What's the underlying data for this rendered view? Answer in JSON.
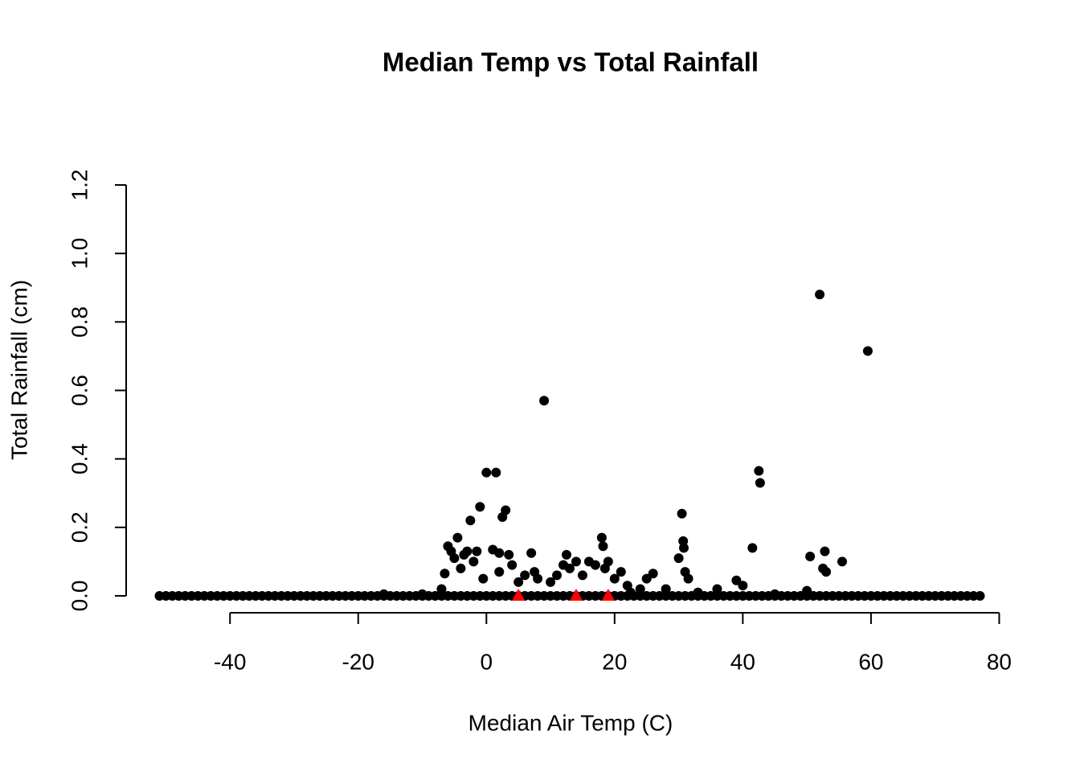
{
  "chart_data": {
    "type": "scatter",
    "title": "Median Temp vs Total Rainfall",
    "x_label": "Median Air Temp (C)",
    "y_label": "Total Rainfall (cm)",
    "xlim": [
      -56.2,
      82.2
    ],
    "ylim": [
      -0.048,
      1.248
    ],
    "xticks": [
      -40,
      -20,
      0,
      20,
      40,
      60,
      80
    ],
    "yticks": [
      {
        "value": 0,
        "label": "0.0"
      },
      0.2,
      0.4,
      0.6,
      0.8,
      {
        "value": 1,
        "label": "1.0"
      },
      1.2
    ],
    "grid": false,
    "series": [
      {
        "color": "#000000",
        "marker": "circle",
        "x": [
          -51,
          -50,
          -49,
          -48,
          -47,
          -46,
          -45,
          -44,
          -43,
          -42,
          -41,
          -40,
          -39,
          -38,
          -37,
          -36,
          -35,
          -34,
          -33,
          -32,
          -31,
          -30,
          -29,
          -28,
          -27,
          -26,
          -25,
          -24,
          -23,
          -22,
          -21,
          -20,
          -19,
          -18,
          -17,
          -16,
          -15,
          -14,
          -13,
          -12,
          -11,
          -10,
          -9,
          -8,
          -7,
          -6,
          -5,
          -4,
          -3,
          -2,
          -1,
          0,
          1,
          2,
          3,
          4,
          5,
          6,
          7,
          8,
          9,
          10,
          11,
          12,
          13,
          14,
          15,
          16,
          17,
          18,
          19,
          20,
          21,
          22,
          23,
          24,
          25,
          26,
          27,
          28,
          29,
          30,
          31,
          32,
          33,
          34,
          35,
          36,
          37,
          38,
          39,
          40,
          41,
          42,
          43,
          44,
          45,
          46,
          47,
          48,
          49,
          50,
          51,
          52,
          53,
          54,
          55,
          56,
          57,
          58,
          59,
          60,
          61,
          62,
          63,
          64,
          65,
          66,
          67,
          68,
          69,
          70,
          71,
          72,
          73,
          74,
          75,
          76,
          77,
          -7,
          -6.5,
          -6,
          -5.5,
          -5,
          -4.5,
          -4,
          -3.5,
          -3,
          -2.5,
          -2,
          -1.5,
          -1,
          -0.5,
          0,
          1.5,
          1,
          2,
          2.5,
          3,
          3.5,
          4,
          2,
          5,
          6,
          7,
          7.5,
          8,
          9,
          10,
          11,
          12,
          12.5,
          13,
          14,
          15,
          16,
          17,
          18,
          18.2,
          18.5,
          19,
          20,
          21,
          22,
          24,
          25,
          26,
          28,
          30,
          30.5,
          30.7,
          30.8,
          31,
          31.5,
          33,
          36,
          39,
          40,
          41.5,
          42.5,
          42.7,
          50.5,
          52,
          52.5,
          52.8,
          53,
          55.5,
          59.5,
          50,
          45,
          -10,
          -16,
          22.5
        ],
        "values": [
          0,
          0,
          0,
          0,
          0,
          0,
          0,
          0,
          0,
          0,
          0,
          0,
          0,
          0,
          0,
          0,
          0,
          0,
          0,
          0,
          0,
          0,
          0,
          0,
          0,
          0,
          0,
          0,
          0,
          0,
          0,
          0,
          0,
          0,
          0,
          0,
          0,
          0,
          0,
          0,
          0,
          0,
          0,
          0,
          0,
          0,
          0,
          0,
          0,
          0,
          0,
          0,
          0,
          0,
          0,
          0,
          0,
          0,
          0,
          0,
          0,
          0,
          0,
          0,
          0,
          0,
          0,
          0,
          0,
          0,
          0,
          0,
          0,
          0,
          0,
          0,
          0,
          0,
          0,
          0,
          0,
          0,
          0,
          0,
          0,
          0,
          0,
          0,
          0,
          0,
          0,
          0,
          0,
          0,
          0,
          0,
          0,
          0,
          0,
          0,
          0,
          0,
          0,
          0,
          0,
          0,
          0,
          0,
          0,
          0,
          0,
          0,
          0,
          0,
          0,
          0,
          0,
          0,
          0,
          0,
          0,
          0,
          0,
          0,
          0,
          0,
          0,
          0,
          0,
          0.02,
          0.065,
          0.145,
          0.13,
          0.11,
          0.17,
          0.08,
          0.12,
          0.13,
          0.22,
          0.1,
          0.13,
          0.26,
          0.05,
          0.36,
          0.36,
          0.135,
          0.125,
          0.23,
          0.25,
          0.12,
          0.09,
          0.07,
          0.04,
          0.06,
          0.125,
          0.07,
          0.05,
          0.57,
          0.04,
          0.06,
          0.09,
          0.12,
          0.08,
          0.1,
          0.06,
          0.1,
          0.09,
          0.17,
          0.145,
          0.08,
          0.1,
          0.05,
          0.07,
          0.03,
          0.02,
          0.05,
          0.065,
          0.02,
          0.11,
          0.24,
          0.16,
          0.14,
          0.07,
          0.05,
          0.01,
          0.02,
          0.045,
          0.03,
          0.14,
          0.365,
          0.33,
          0.115,
          0.88,
          0.08,
          0.13,
          0.07,
          0.1,
          0.715,
          0.015,
          0.005,
          0.005,
          0.005,
          0.01
        ]
      },
      {
        "color": "#ff0000",
        "marker": "triangle",
        "x": [
          5,
          14,
          19
        ],
        "values": [
          0,
          0,
          0
        ]
      }
    ]
  }
}
